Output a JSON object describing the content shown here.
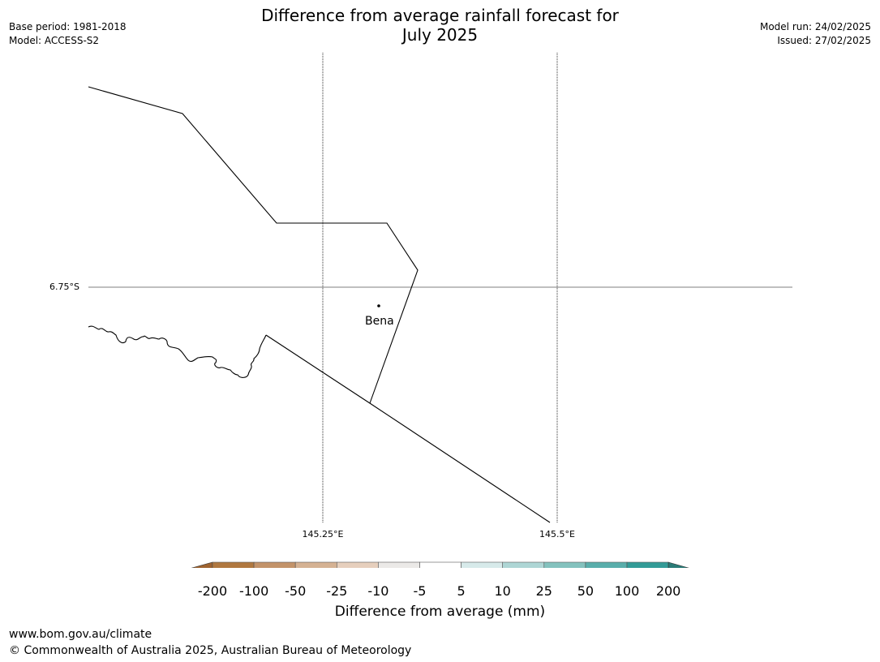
{
  "header": {
    "title_line1": "Difference from average rainfall forecast for",
    "title_line2": "July 2025",
    "base_period": "Base period: 1981-2018",
    "model": "Model: ACCESS-S2",
    "model_run": "Model run: 24/02/2025",
    "issued": "Issued: 27/02/2025"
  },
  "map": {
    "lat_label": "6.75°S",
    "lon_labels": [
      "145.25°E",
      "145.5°E"
    ],
    "town": "Bena"
  },
  "colorbar": {
    "title": "Difference from average (mm)",
    "ticks": [
      "-200",
      "-100",
      "-50",
      "-25",
      "-10",
      "-5",
      "5",
      "10",
      "25",
      "50",
      "100",
      "200"
    ],
    "colors": [
      "#9e6330",
      "#b07840",
      "#c3936a",
      "#d5b293",
      "#e6cfbd",
      "#ebe9e7",
      "#ffffff",
      "#d7eaea",
      "#aed6d5",
      "#84c2be",
      "#59aeab",
      "#339b97",
      "#2a7b77"
    ]
  },
  "footer": {
    "url": "www.bom.gov.au/climate",
    "copyright": "© Commonwealth of Australia 2025, Australian Bureau of Meteorology"
  }
}
